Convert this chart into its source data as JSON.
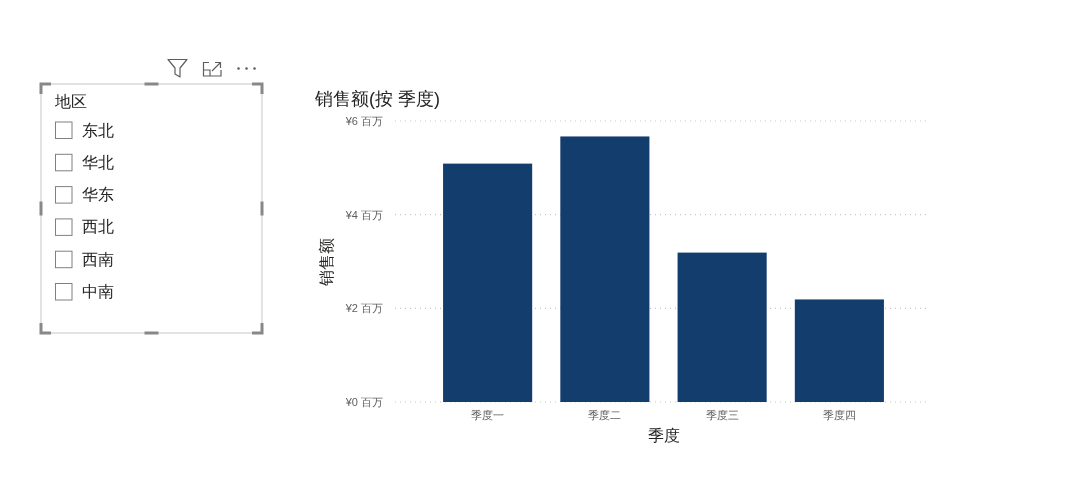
{
  "chart_data": [
    {
      "type": "other",
      "title": "地区",
      "annotations": [
        "东北",
        "华北",
        "华东",
        "西北",
        "西南",
        "中南"
      ]
    },
    {
      "type": "bar",
      "title": "销售额(按 季度)",
      "xlabel": "季度",
      "ylabel": "销售额",
      "categories": [
        "季度一",
        "季度二",
        "季度三",
        "季度四"
      ],
      "values": [
        5.09,
        5.67,
        3.19,
        2.19
      ],
      "color": "#123d6c",
      "ylim": [
        0,
        6
      ],
      "yticks": [
        {
          "value": 0,
          "label": "¥0 百万"
        },
        {
          "value": 2,
          "label": "¥2 百万"
        },
        {
          "value": 4,
          "label": "¥4 百万"
        },
        {
          "value": 6,
          "label": "¥6 百万"
        }
      ],
      "grid": "y"
    }
  ]
}
